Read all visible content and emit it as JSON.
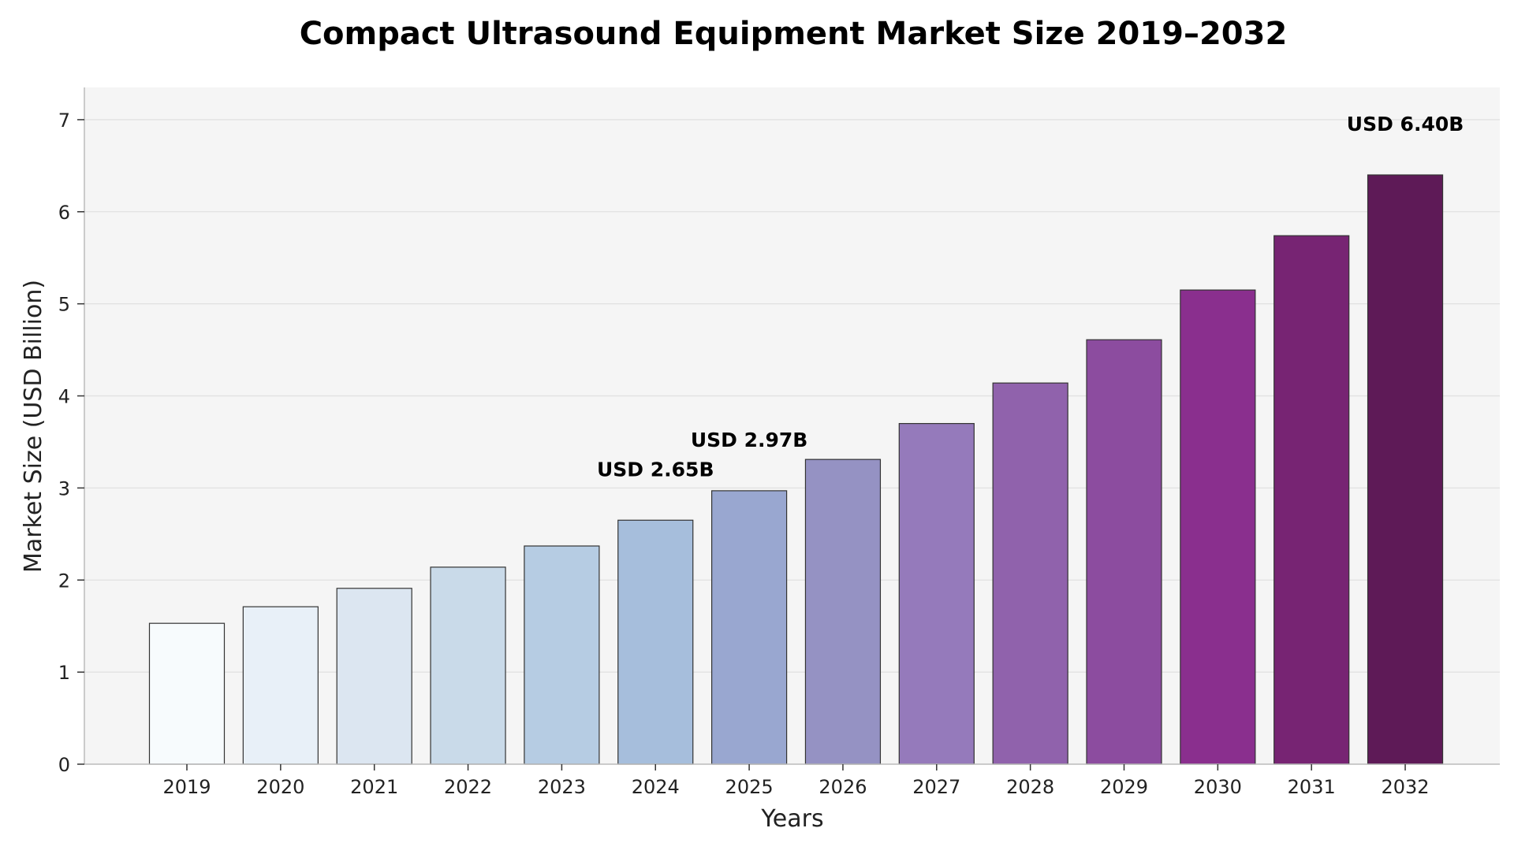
{
  "chart_data": {
    "type": "bar",
    "title": "Compact Ultrasound Equipment Market Size 2019–2032",
    "xlabel": "Years",
    "ylabel": "Market Size (USD Billion)",
    "categories": [
      "2019",
      "2020",
      "2021",
      "2022",
      "2023",
      "2024",
      "2025",
      "2026",
      "2027",
      "2028",
      "2029",
      "2030",
      "2031",
      "2032"
    ],
    "values": [
      1.53,
      1.71,
      1.91,
      2.14,
      2.37,
      2.65,
      2.97,
      3.31,
      3.7,
      4.14,
      4.61,
      5.15,
      5.74,
      6.4
    ],
    "ylim": [
      0,
      7.35
    ],
    "yticks": [
      "0",
      "1",
      "2",
      "3",
      "4",
      "5",
      "6",
      "7"
    ],
    "grid": "horizontal",
    "annotations": [
      {
        "category": "2024",
        "text": "USD 2.65B"
      },
      {
        "category": "2025",
        "text": "USD 2.97B"
      },
      {
        "category": "2032",
        "text": "USD 6.40B"
      }
    ],
    "colors": [
      "#f7fbfd",
      "#e8f0f8",
      "#dce6f1",
      "#c9dae9",
      "#b6cce3",
      "#a6bedc",
      "#99a7d0",
      "#9592c3",
      "#957abb",
      "#9062ac",
      "#8c4c9f",
      "#8a2f8e",
      "#772473",
      "#5e1a57"
    ],
    "background": "#f5f5f5",
    "grid_color": "#e0e0e0"
  }
}
